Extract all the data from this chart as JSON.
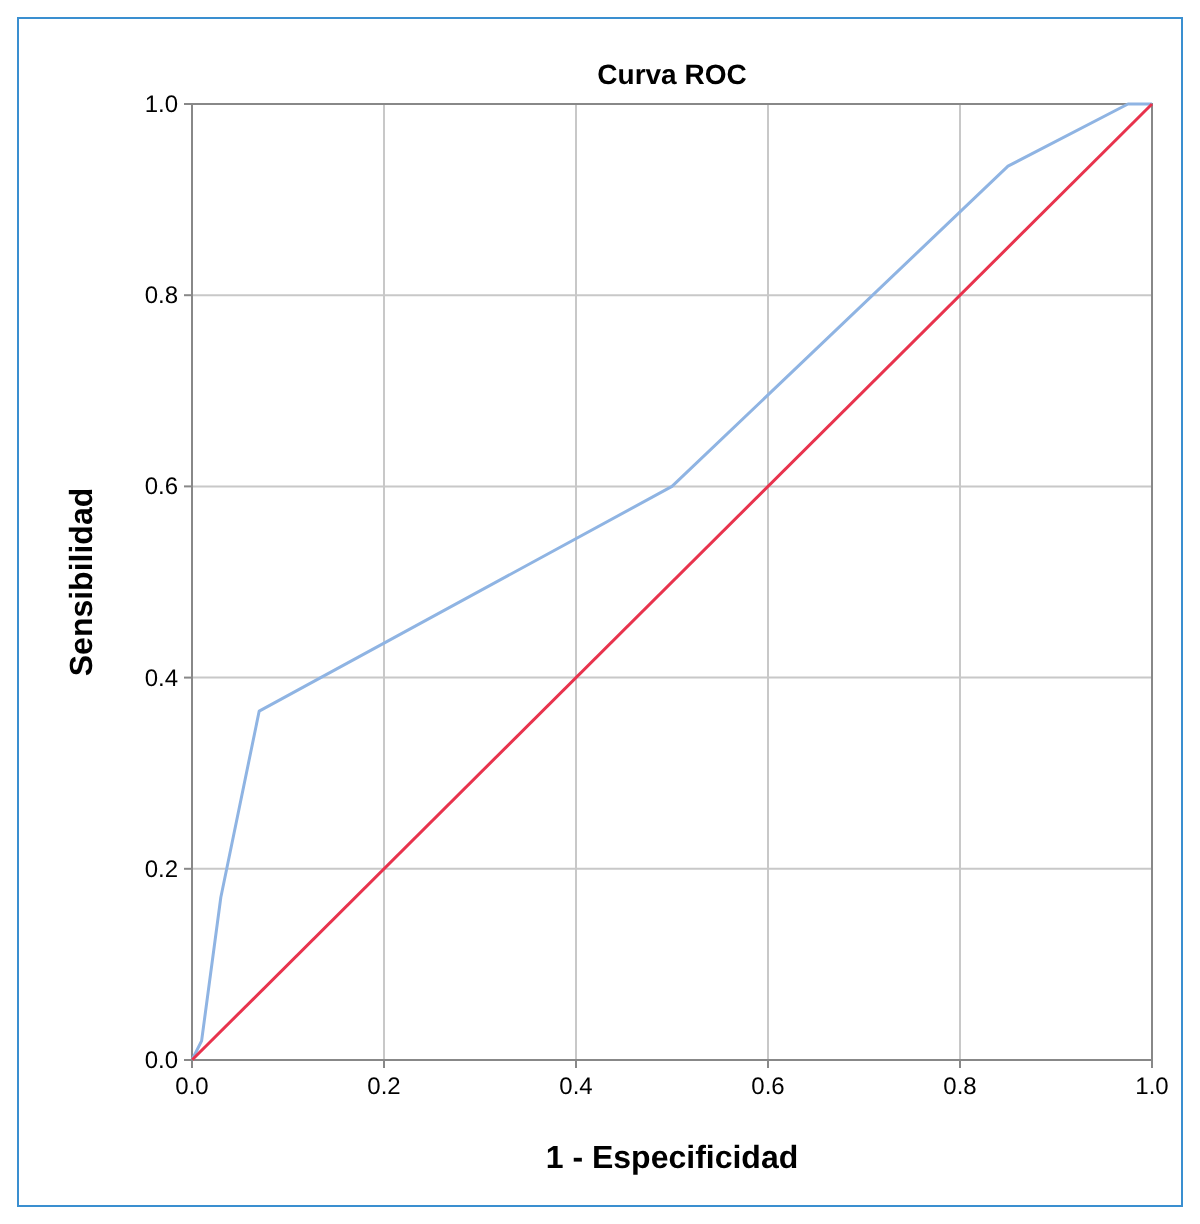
{
  "chart_data": {
    "type": "line",
    "title": "Curva ROC",
    "xlabel": "1 - Especificidad",
    "ylabel": "Sensibilidad",
    "xlim": [
      0,
      1
    ],
    "ylim": [
      0,
      1
    ],
    "xticks": [
      {
        "value": 0,
        "label": "0.0"
      },
      0.2,
      0.4,
      0.6,
      0.8,
      {
        "value": 1,
        "label": "1.0"
      }
    ],
    "yticks": [
      {
        "value": 0,
        "label": "0.0"
      },
      0.2,
      0.4,
      0.6,
      0.8,
      {
        "value": 1,
        "label": "1.0"
      }
    ],
    "grid": true,
    "marker": "none",
    "line_style": "solid",
    "series": [
      {
        "color": "#8fb4e3",
        "x": [
          0,
          0.01,
          0.03,
          0.07,
          0.5,
          0.85,
          0.975,
          1
        ],
        "values": [
          0,
          0.02,
          0.17,
          0.365,
          0.6,
          0.935,
          1,
          1
        ]
      },
      {
        "color": "#e8334d",
        "x": [
          0,
          1
        ],
        "values": [
          0,
          1
        ]
      }
    ]
  }
}
